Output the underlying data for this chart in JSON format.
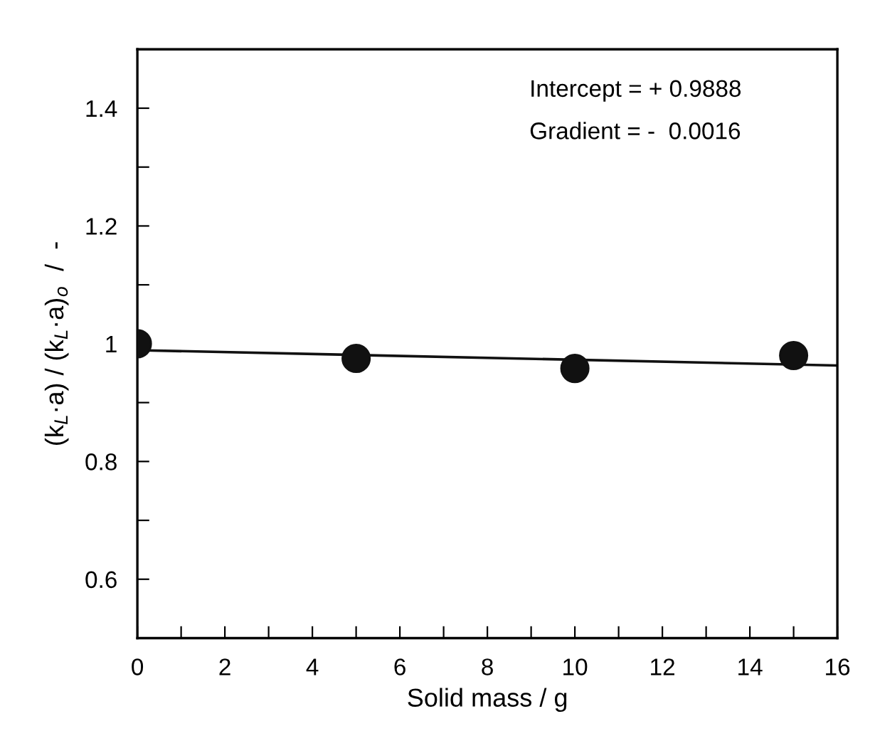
{
  "chart_data": {
    "type": "scatter",
    "xlabel": "Solid mass / g",
    "ylabel": "(k$_{L}$·a) / (k$_{L}$·a)$_{o}$  /  -",
    "annotations": [
      "Intercept = + 0.9888",
      "Gradient = -  0.0016"
    ],
    "series": [
      {
        "color": "#111111",
        "marker": "circle",
        "x": [
          0,
          5,
          10,
          15
        ],
        "values": [
          1.0,
          0.975,
          0.958,
          0.98
        ]
      },
      {
        "type": "line",
        "color": "#111111",
        "marker": "none",
        "line_style": "solid",
        "x": [
          0,
          16
        ],
        "values": [
          0.989,
          0.963
        ]
      }
    ],
    "xlim": [
      0,
      16
    ],
    "ylim": [
      0.5,
      1.5
    ],
    "xticks": [
      0,
      {
        "value": 1,
        "label": null
      },
      2,
      {
        "value": 3,
        "label": null
      },
      4,
      {
        "value": 5,
        "label": null
      },
      6,
      {
        "value": 7,
        "label": null
      },
      8,
      {
        "value": 9,
        "label": null
      },
      10,
      {
        "value": 11,
        "label": null
      },
      12,
      {
        "value": 13,
        "label": null
      },
      14,
      {
        "value": 15,
        "label": null
      },
      16
    ],
    "yticks": [
      {
        "value": 0.6,
        "label": "0.6"
      },
      {
        "value": 0.7,
        "label": null
      },
      {
        "value": 0.8,
        "label": "0.8"
      },
      {
        "value": 0.9,
        "label": null
      },
      {
        "value": 1,
        "label": "1"
      },
      {
        "value": 1.1,
        "label": null
      },
      {
        "value": 1.2,
        "label": "1.2"
      },
      {
        "value": 1.3,
        "label": null
      },
      {
        "value": 1.4,
        "label": "1.4"
      }
    ],
    "grid": false
  }
}
